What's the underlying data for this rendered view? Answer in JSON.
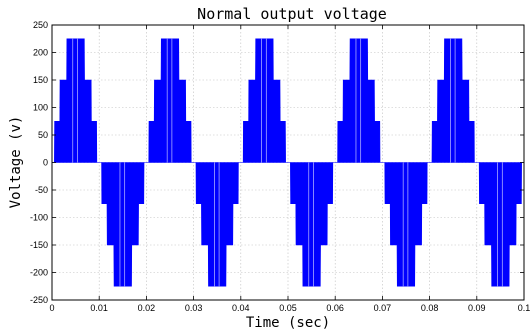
{
  "chart_data": {
    "type": "line",
    "title": "Normal output voltage",
    "xlabel": "Time (sec)",
    "ylabel": "Voltage (v)",
    "xlim": [
      0,
      0.1
    ],
    "ylim": [
      -250,
      250
    ],
    "grid": true,
    "x_ticks": [
      "0",
      "0.01",
      "0.02",
      "0.03",
      "0.04",
      "0.05",
      "0.06",
      "0.07",
      "0.08",
      "0.09",
      "0.1"
    ],
    "y_ticks": [
      "250",
      "200",
      "150",
      "100",
      "50",
      "0",
      "-50",
      "-100",
      "-150",
      "-200",
      "-250"
    ],
    "series": [
      {
        "color": "#0000ff",
        "fundamental_frequency_hz": 50,
        "step_levels_v": [
          0,
          75,
          150,
          225
        ],
        "switching_thresholds_fraction_of_peak": [
          0.167,
          0.5,
          0.833
        ],
        "peak_v": 225
      }
    ]
  }
}
